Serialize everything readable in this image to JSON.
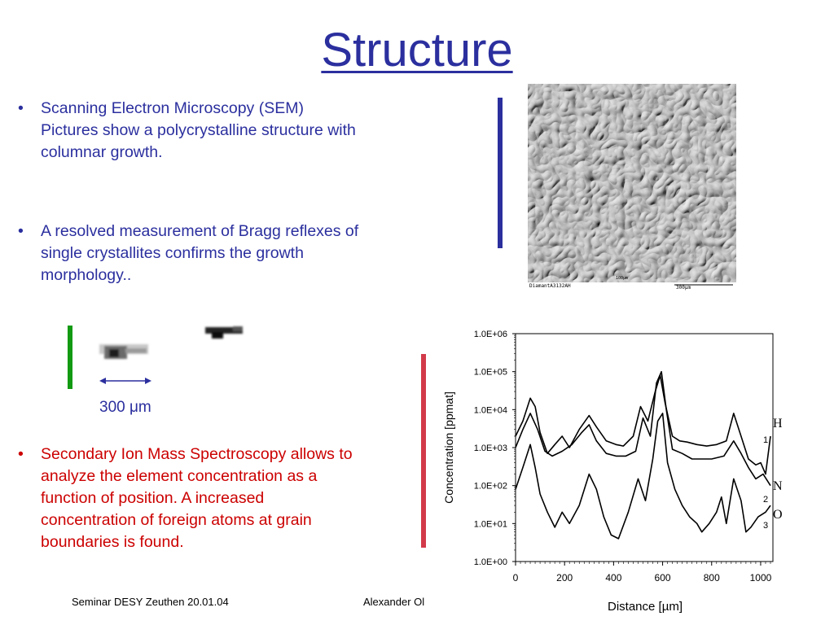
{
  "slide": {
    "title": "Structure",
    "bullets": [
      {
        "marker": "•",
        "text": "Scanning Electron Microscopy (SEM) Pictures show a polycrystalline structure with columnar growth."
      },
      {
        "marker": "•",
        "text": "A resolved measurement of Bragg reflexes of single crystallites confirms the growth morphology.."
      },
      {
        "marker": "•",
        "text": "Secondary Ion Mass Spectroscopy allows to analyze the element concentration as a function of position. A increased concentration of foreign atoms at grain boundaries is found."
      }
    ],
    "scale_label": "300 μm",
    "sem_caption": {
      "left": "DiamantA3132AH",
      "mid": "100μm",
      "right": "300μm"
    },
    "footer": {
      "left": "Seminar DESY Zeuthen 20.01.04",
      "middle": "Alexander Ol"
    },
    "colors": {
      "title": "#2b2f9e",
      "blue_text": "#2b2f9e",
      "red_text": "#cc0000",
      "blue_bar": "#2b2f9e",
      "green_bar": "#129a12",
      "red_bar": "#d23a4a"
    }
  },
  "chart_data": {
    "type": "line",
    "xlabel": "Distance [µm]",
    "ylabel": "Concentration [ppmat]",
    "xlim": [
      0,
      1050
    ],
    "ylim": [
      1,
      1000000
    ],
    "yscale": "log",
    "x_ticks": [
      "0",
      "200",
      "400",
      "600",
      "800",
      "1000"
    ],
    "y_ticks": [
      "1.0E+00",
      "1.0E+01",
      "1.0E+02",
      "1.0E+03",
      "1.0E+04",
      "1.0E+05",
      "1.0E+06"
    ],
    "legend": [
      {
        "label": "H",
        "sub": "1"
      },
      {
        "label": "N",
        "sub": "2"
      },
      {
        "label": "O",
        "sub": "3"
      }
    ],
    "series": [
      {
        "values": [
          [
            0,
            2000
          ],
          [
            30,
            5000
          ],
          [
            60,
            20000
          ],
          [
            80,
            12000
          ],
          [
            100,
            2500
          ],
          [
            130,
            700
          ],
          [
            160,
            1200
          ],
          [
            190,
            2000
          ],
          [
            220,
            1000
          ],
          [
            260,
            3000
          ],
          [
            300,
            7000
          ],
          [
            330,
            3500
          ],
          [
            370,
            1500
          ],
          [
            410,
            1200
          ],
          [
            440,
            1100
          ],
          [
            480,
            2000
          ],
          [
            510,
            12000
          ],
          [
            540,
            5000
          ],
          [
            570,
            30000
          ],
          [
            590,
            80000
          ],
          [
            610,
            15000
          ],
          [
            640,
            2000
          ],
          [
            670,
            1500
          ],
          [
            700,
            1400
          ],
          [
            740,
            1200
          ],
          [
            780,
            1100
          ],
          [
            820,
            1200
          ],
          [
            860,
            1500
          ],
          [
            890,
            8000
          ],
          [
            920,
            2000
          ],
          [
            950,
            500
          ],
          [
            980,
            350
          ],
          [
            1000,
            400
          ],
          [
            1020,
            200
          ],
          [
            1040,
            2000
          ]
        ]
      },
      {
        "values": [
          [
            0,
            1000
          ],
          [
            30,
            3000
          ],
          [
            60,
            8000
          ],
          [
            90,
            3000
          ],
          [
            120,
            800
          ],
          [
            150,
            600
          ],
          [
            190,
            800
          ],
          [
            230,
            1200
          ],
          [
            270,
            2500
          ],
          [
            300,
            4000
          ],
          [
            330,
            1500
          ],
          [
            370,
            700
          ],
          [
            410,
            600
          ],
          [
            450,
            600
          ],
          [
            490,
            800
          ],
          [
            520,
            6000
          ],
          [
            550,
            2000
          ],
          [
            575,
            50000
          ],
          [
            595,
            100000
          ],
          [
            615,
            10000
          ],
          [
            640,
            900
          ],
          [
            680,
            700
          ],
          [
            720,
            500
          ],
          [
            760,
            500
          ],
          [
            800,
            500
          ],
          [
            850,
            600
          ],
          [
            890,
            1500
          ],
          [
            920,
            700
          ],
          [
            950,
            300
          ],
          [
            980,
            150
          ],
          [
            1010,
            200
          ],
          [
            1040,
            100
          ]
        ]
      },
      {
        "values": [
          [
            0,
            80
          ],
          [
            30,
            300
          ],
          [
            60,
            1200
          ],
          [
            80,
            300
          ],
          [
            100,
            60
          ],
          [
            130,
            20
          ],
          [
            160,
            8
          ],
          [
            190,
            20
          ],
          [
            220,
            10
          ],
          [
            260,
            30
          ],
          [
            300,
            200
          ],
          [
            330,
            80
          ],
          [
            360,
            15
          ],
          [
            390,
            5
          ],
          [
            420,
            4
          ],
          [
            460,
            20
          ],
          [
            500,
            150
          ],
          [
            530,
            40
          ],
          [
            560,
            500
          ],
          [
            580,
            5000
          ],
          [
            600,
            8000
          ],
          [
            620,
            400
          ],
          [
            650,
            80
          ],
          [
            680,
            30
          ],
          [
            710,
            15
          ],
          [
            740,
            10
          ],
          [
            760,
            6
          ],
          [
            790,
            10
          ],
          [
            820,
            20
          ],
          [
            840,
            50
          ],
          [
            860,
            10
          ],
          [
            890,
            150
          ],
          [
            920,
            40
          ],
          [
            940,
            6
          ],
          [
            960,
            8
          ],
          [
            990,
            15
          ],
          [
            1020,
            20
          ],
          [
            1040,
            30
          ]
        ]
      }
    ]
  }
}
